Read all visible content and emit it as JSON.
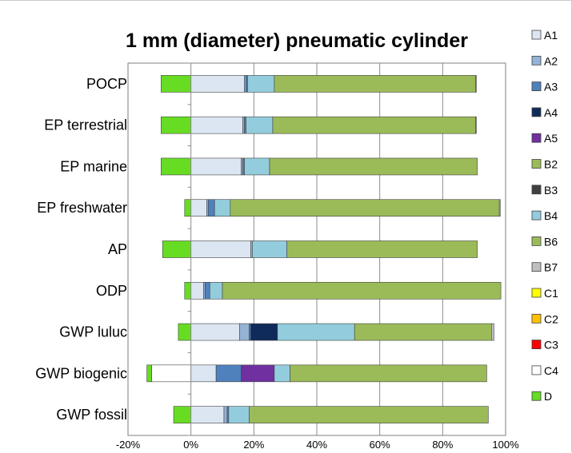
{
  "chart_data": {
    "type": "bar",
    "orientation": "horizontal",
    "stacked": true,
    "title": "1 mm (diameter) pneumatic cylinder",
    "xlabel": "",
    "ylabel": "",
    "xlim": [
      -0.2,
      1.0
    ],
    "x_ticks": [
      -0.2,
      0,
      0.2,
      0.4,
      0.6,
      0.8,
      1.0
    ],
    "x_tick_labels": [
      "-20%",
      "0%",
      "20%",
      "40%",
      "60%",
      "80%",
      "100%"
    ],
    "grid": "vertical",
    "legend_position": "right",
    "categories": [
      "POCP",
      "EP terrestrial",
      "EP marine",
      "EP freshwater",
      "AP",
      "ODP",
      "GWP luluc",
      "GWP biogenic",
      "GWP fossil"
    ],
    "series": [
      {
        "name": "A1",
        "color": "#dce6f2",
        "values": [
          0.17,
          0.165,
          0.16,
          0.05,
          0.19,
          0.04,
          0.155,
          0.08,
          0.105
        ]
      },
      {
        "name": "A2",
        "color": "#95b3d7",
        "values": [
          0.005,
          0.005,
          0.005,
          0.005,
          0.005,
          0.005,
          0.03,
          0,
          0.01
        ]
      },
      {
        "name": "A3",
        "color": "#4f81bd",
        "values": [
          0.005,
          0.005,
          0.005,
          0.02,
          0,
          0.015,
          0.005,
          0.08,
          0.005
        ]
      },
      {
        "name": "A4",
        "color": "#0f2b5b",
        "values": [
          0,
          0,
          0,
          0,
          0,
          0,
          0.085,
          0,
          0
        ]
      },
      {
        "name": "A5",
        "color": "#7030a0",
        "values": [
          0,
          0,
          0,
          0,
          0,
          0,
          0,
          0.105,
          0
        ]
      },
      {
        "name": "B2",
        "color": "#9bbb59",
        "values": [
          0,
          0,
          0,
          0,
          0,
          0,
          0,
          0,
          0
        ]
      },
      {
        "name": "B3",
        "color": "#404040",
        "values": [
          0,
          0,
          0,
          0,
          0,
          0,
          0,
          0,
          0
        ]
      },
      {
        "name": "B4",
        "color": "#93cddd",
        "values": [
          0.085,
          0.085,
          0.08,
          0.05,
          0.11,
          0.04,
          0.245,
          0.05,
          0.065
        ]
      },
      {
        "name": "B6",
        "color": "#9bbb59",
        "values": [
          0.64,
          0.645,
          0.66,
          0.855,
          0.605,
          0.885,
          0.435,
          0.625,
          0.76
        ]
      },
      {
        "name": "B7",
        "color": "#bfbfbf",
        "values": [
          0.002,
          0.002,
          0,
          0.003,
          0,
          0,
          0.008,
          0,
          0
        ]
      },
      {
        "name": "C1",
        "color": "#ffff00",
        "values": [
          0,
          0,
          0,
          0,
          0,
          0,
          0,
          0,
          0
        ]
      },
      {
        "name": "C2",
        "color": "#ffc000",
        "values": [
          0,
          0,
          0,
          0,
          0,
          0,
          0,
          0,
          0
        ]
      },
      {
        "name": "C3",
        "color": "#ff0000",
        "values": [
          0,
          0,
          0,
          0,
          0,
          0,
          0,
          0,
          0
        ]
      },
      {
        "name": "C4",
        "color": "#ffffff",
        "values": [
          0,
          0,
          0,
          0,
          0,
          0,
          0,
          -0.125,
          0
        ]
      },
      {
        "name": "D",
        "color": "#66dd22",
        "values": [
          -0.095,
          -0.095,
          -0.095,
          -0.02,
          -0.09,
          -0.02,
          -0.04,
          -0.015,
          -0.055
        ]
      }
    ]
  }
}
